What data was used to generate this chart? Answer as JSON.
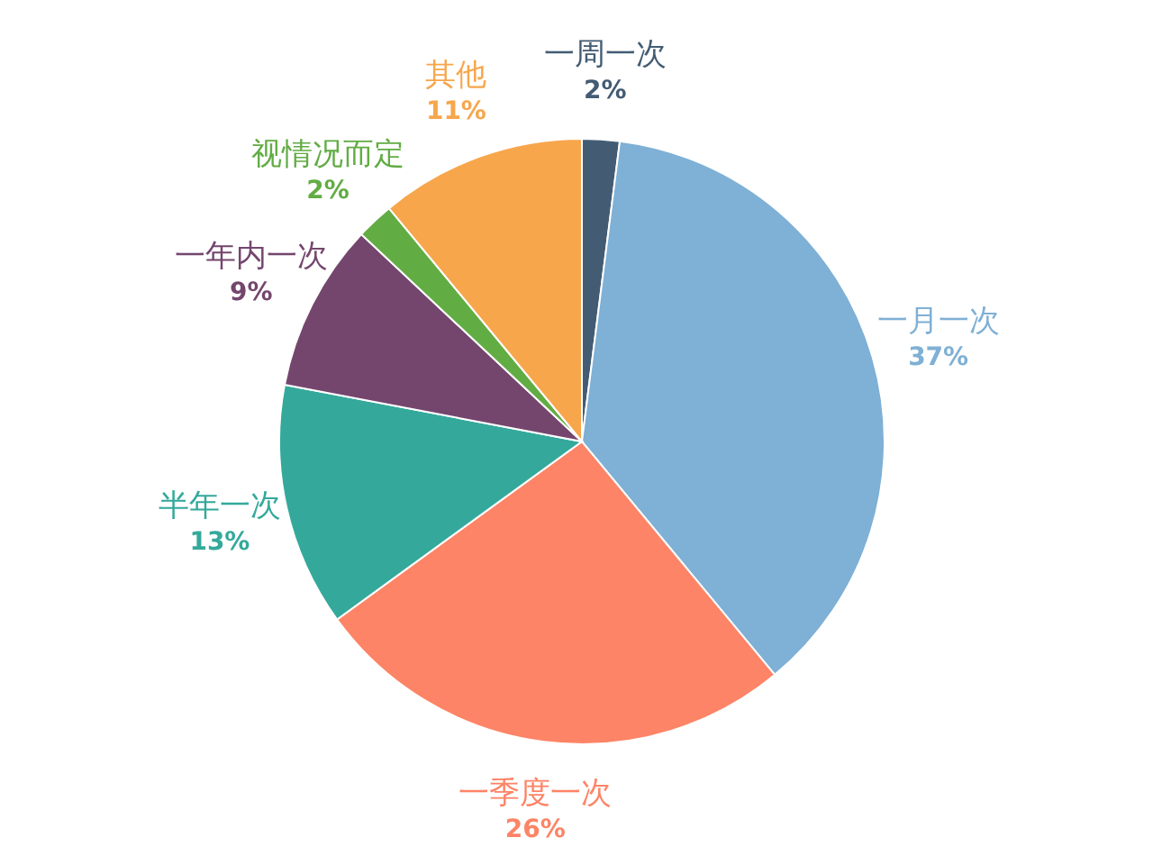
{
  "chart_data": {
    "type": "pie",
    "categories": [
      "一周一次",
      "一月一次",
      "一季度一次",
      "半年一次",
      "一年内一次",
      "视情况而定",
      "其他"
    ],
    "values": [
      2,
      37,
      26,
      13,
      9,
      2,
      11
    ],
    "value_labels": [
      "2%",
      "37%",
      "26%",
      "13%",
      "9%",
      "2%",
      "11%"
    ],
    "colors": [
      "#435c73",
      "#7fb0d5",
      "#fd8466",
      "#34a99b",
      "#74466e",
      "#62ac44",
      "#f7a64c"
    ]
  }
}
